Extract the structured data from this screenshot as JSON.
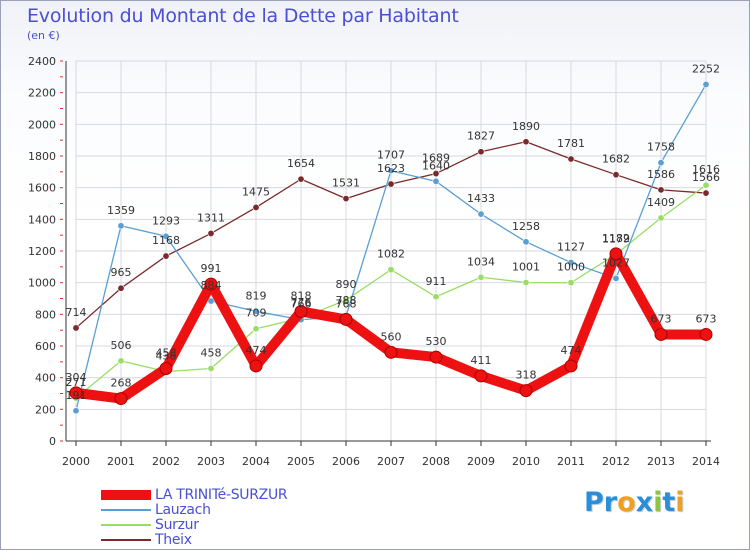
{
  "title": "Evolution du Montant de la Dette par Habitant",
  "subtitle": "(en €)",
  "logo_letters": [
    {
      "ch": "P",
      "color": "#2a8fd6"
    },
    {
      "ch": "r",
      "color": "#2a8fd6"
    },
    {
      "ch": "o",
      "color": "#f0a020"
    },
    {
      "ch": "x",
      "color": "#2a8fd6"
    },
    {
      "ch": "i",
      "color": "#8cc63f"
    },
    {
      "ch": "t",
      "color": "#2a8fd6"
    },
    {
      "ch": "i",
      "color": "#f0a020"
    }
  ],
  "chart_data": {
    "type": "line",
    "x": [
      "2000",
      "2001",
      "2002",
      "2003",
      "2004",
      "2005",
      "2006",
      "2007",
      "2008",
      "2009",
      "2010",
      "2011",
      "2012",
      "2013",
      "2014"
    ],
    "ylim": [
      0,
      2400
    ],
    "yticks": [
      0,
      200,
      400,
      600,
      800,
      1000,
      1200,
      1400,
      1600,
      1800,
      2000,
      2200,
      2400
    ],
    "grid": true,
    "legend_position": "bottom-left",
    "series": [
      {
        "name": "LA TRINITé-SURZUR",
        "color": "#ee1111",
        "values": [
          304,
          268,
          458,
          991,
          474,
          818,
          768,
          560,
          530,
          411,
          318,
          474,
          1182,
          673,
          673
        ]
      },
      {
        "name": "Lauzach",
        "color": "#5a9fd4",
        "values": [
          191,
          1359,
          1293,
          884,
          819,
          766,
          788,
          1707,
          1640,
          1433,
          1258,
          1127,
          1027,
          1758,
          2252
        ]
      },
      {
        "name": "Surzur",
        "color": "#99dd66",
        "values": [
          271,
          506,
          438,
          458,
          709,
          776,
          890,
          1082,
          911,
          1034,
          1001,
          1000,
          1179,
          1409,
          1616
        ]
      },
      {
        "name": "Theix",
        "color": "#7a2a2a",
        "values": [
          714,
          965,
          1168,
          1311,
          1475,
          1654,
          1531,
          1623,
          1689,
          1827,
          1890,
          1781,
          1682,
          1586,
          1566
        ]
      }
    ]
  }
}
